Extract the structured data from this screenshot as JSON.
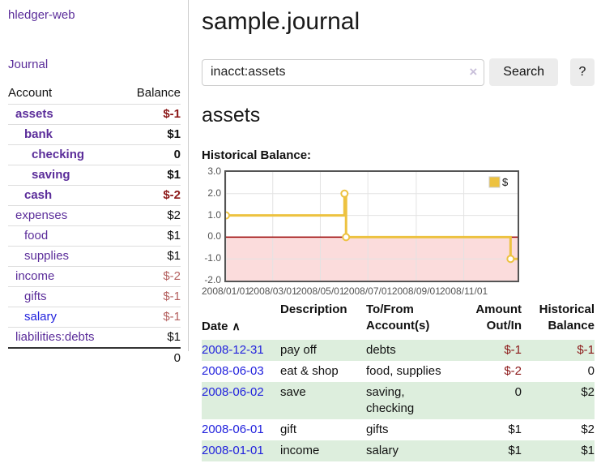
{
  "sidebar": {
    "brand": "hledger-web",
    "nav": {
      "journal": "Journal"
    },
    "table": {
      "col_account": "Account",
      "col_balance": "Balance",
      "rows": [
        {
          "name": "assets",
          "balance": "$-1"
        },
        {
          "name": "bank",
          "balance": "$1"
        },
        {
          "name": "checking",
          "balance": "0"
        },
        {
          "name": "saving",
          "balance": "$1"
        },
        {
          "name": "cash",
          "balance": "$-2"
        },
        {
          "name": "expenses",
          "balance": "$2"
        },
        {
          "name": "food",
          "balance": "$1"
        },
        {
          "name": "supplies",
          "balance": "$1"
        },
        {
          "name": "income",
          "balance": "$-2"
        },
        {
          "name": "gifts",
          "balance": "$-1"
        },
        {
          "name": "salary",
          "balance": "$-1"
        },
        {
          "name": "liabilities:debts",
          "balance": "$1"
        }
      ],
      "total": "0"
    }
  },
  "header": {
    "title": "sample.journal"
  },
  "search": {
    "value": "inacct:assets",
    "clear_icon": "×",
    "search_button": "Search",
    "help_button": "?"
  },
  "account_page": {
    "title": "assets",
    "chart_heading": "Historical Balance:"
  },
  "chart_data": {
    "type": "line",
    "title": "Historical Balance",
    "series": [
      {
        "name": "$",
        "color": "#edc240",
        "step": true,
        "points": [
          {
            "date": "2008-01-01",
            "day": 0,
            "value": 1
          },
          {
            "date": "2008-06-01",
            "day": 152,
            "value": 2
          },
          {
            "date": "2008-06-03",
            "day": 154,
            "value": 0
          },
          {
            "date": "2008-12-31",
            "day": 365,
            "value": -1
          }
        ]
      }
    ],
    "x_ticks": [
      {
        "label": "2008/01/01",
        "day": 0
      },
      {
        "label": "2008/03/01",
        "day": 60
      },
      {
        "label": "2008/05/01",
        "day": 121
      },
      {
        "label": "2008/07/01",
        "day": 182
      },
      {
        "label": "2008/09/01",
        "day": 244
      },
      {
        "label": "2008/11/01",
        "day": 305
      }
    ],
    "y_ticks": [
      3.0,
      2.0,
      1.0,
      0.0,
      -1.0,
      -2.0
    ],
    "ylim": [
      -2,
      3
    ],
    "xlim_days": [
      0,
      374
    ],
    "grid": true,
    "legend_position": "top-right",
    "negative_region_color": "#fbdcdc",
    "zero_line_color": "#990000"
  },
  "register": {
    "columns": [
      {
        "label": "Date",
        "sort_arrow": "∧"
      },
      {
        "label": "Description"
      },
      {
        "label": "To/From\nAccount(s)"
      },
      {
        "label": "Amount\nOut/In"
      },
      {
        "label": "Historical\nBalance"
      }
    ],
    "rows": [
      {
        "date": "2008-12-31",
        "description": "pay off",
        "accounts": "debts",
        "amount": "$-1",
        "balance": "$-1"
      },
      {
        "date": "2008-06-03",
        "description": "eat & shop",
        "accounts": "food, supplies",
        "amount": "$-2",
        "balance": "0"
      },
      {
        "date": "2008-06-02",
        "description": "save",
        "accounts": "saving,\nchecking",
        "amount": "0",
        "balance": "$2"
      },
      {
        "date": "2008-06-01",
        "description": "gift",
        "accounts": "gifts",
        "amount": "$1",
        "balance": "$2"
      },
      {
        "date": "2008-01-01",
        "description": "income",
        "accounts": "salary",
        "amount": "$1",
        "balance": "$1"
      }
    ]
  }
}
